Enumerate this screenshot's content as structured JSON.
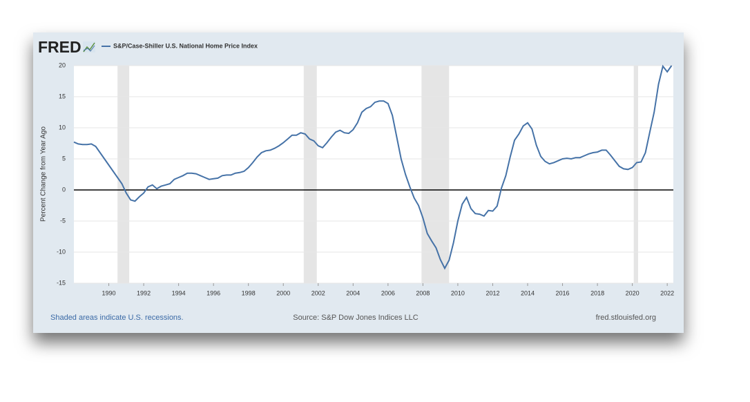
{
  "chart_data": {
    "type": "line",
    "logo": "FRED",
    "ylabel": "Percent Change from Year Ago",
    "note": "Shaded areas indicate U.S. recessions.",
    "source": "Source: S&P Dow Jones Indices LLC",
    "site": "fred.stlouisfed.org",
    "xlim": [
      1988,
      2022.35
    ],
    "ylim": [
      -15,
      20
    ],
    "xticks": [
      1990,
      1992,
      1994,
      1996,
      1998,
      2000,
      2002,
      2004,
      2006,
      2008,
      2010,
      2012,
      2014,
      2016,
      2018,
      2020,
      2022
    ],
    "yticks": [
      -15,
      -10,
      -5,
      0,
      5,
      10,
      15,
      20
    ],
    "grid": true,
    "recessions": [
      [
        1990.5,
        1991.17
      ],
      [
        2001.17,
        2001.92
      ],
      [
        2007.92,
        2009.5
      ],
      [
        2020.08,
        2020.33
      ]
    ],
    "x": [
      1988,
      1988.25,
      1988.5,
      1988.75,
      1989,
      1989.25,
      1989.5,
      1989.75,
      1990,
      1990.25,
      1990.5,
      1990.75,
      1991,
      1991.25,
      1991.5,
      1991.75,
      1992,
      1992.25,
      1992.5,
      1992.75,
      1993,
      1993.25,
      1993.5,
      1993.75,
      1994,
      1994.25,
      1994.5,
      1994.75,
      1995,
      1995.25,
      1995.5,
      1995.75,
      1996,
      1996.25,
      1996.5,
      1996.75,
      1997,
      1997.25,
      1997.5,
      1997.75,
      1998,
      1998.25,
      1998.5,
      1998.75,
      1999,
      1999.25,
      1999.5,
      1999.75,
      2000,
      2000.25,
      2000.5,
      2000.75,
      2001,
      2001.25,
      2001.5,
      2001.75,
      2002,
      2002.25,
      2002.5,
      2002.75,
      2003,
      2003.25,
      2003.5,
      2003.75,
      2004,
      2004.25,
      2004.5,
      2004.75,
      2005,
      2005.25,
      2005.5,
      2005.75,
      2006,
      2006.25,
      2006.5,
      2006.75,
      2007,
      2007.25,
      2007.5,
      2007.75,
      2008,
      2008.25,
      2008.5,
      2008.75,
      2009,
      2009.25,
      2009.5,
      2009.75,
      2010,
      2010.25,
      2010.5,
      2010.75,
      2011,
      2011.25,
      2011.5,
      2011.75,
      2012,
      2012.25,
      2012.5,
      2012.75,
      2013,
      2013.25,
      2013.5,
      2013.75,
      2014,
      2014.25,
      2014.5,
      2014.75,
      2015,
      2015.25,
      2015.5,
      2015.75,
      2016,
      2016.25,
      2016.5,
      2016.75,
      2017,
      2017.25,
      2017.5,
      2017.75,
      2018,
      2018.25,
      2018.5,
      2018.75,
      2019,
      2019.25,
      2019.5,
      2019.75,
      2020,
      2020.25,
      2020.5,
      2020.75,
      2021,
      2021.25,
      2021.5,
      2021.75,
      2022,
      2022.25
    ],
    "series": [
      {
        "name": "S&P/Case-Shiller U.S. National Home Price Index",
        "color": "#4572a7",
        "values": [
          7.7,
          7.4,
          7.3,
          7.3,
          7.4,
          7.0,
          6.0,
          5.0,
          4.0,
          3.0,
          2.0,
          1.0,
          -0.5,
          -1.6,
          -1.8,
          -1.1,
          -0.5,
          0.5,
          0.8,
          0.2,
          0.6,
          0.8,
          1.0,
          1.7,
          2.0,
          2.3,
          2.7,
          2.7,
          2.6,
          2.3,
          2.0,
          1.7,
          1.8,
          1.9,
          2.3,
          2.4,
          2.4,
          2.7,
          2.8,
          3.0,
          3.6,
          4.4,
          5.3,
          6.0,
          6.3,
          6.4,
          6.7,
          7.1,
          7.6,
          8.2,
          8.8,
          8.8,
          9.2,
          9.0,
          8.2,
          7.9,
          7.1,
          6.8,
          7.6,
          8.5,
          9.3,
          9.6,
          9.2,
          9.1,
          9.7,
          10.8,
          12.5,
          13.1,
          13.4,
          14.1,
          14.3,
          14.3,
          13.9,
          12.0,
          8.5,
          5.0,
          2.5,
          0.5,
          -1.3,
          -2.5,
          -4.5,
          -7.0,
          -8.2,
          -9.3,
          -11.2,
          -12.6,
          -11.3,
          -8.5,
          -5.0,
          -2.3,
          -1.2,
          -3.0,
          -3.8,
          -3.9,
          -4.2,
          -3.3,
          -3.4,
          -2.6,
          0.3,
          2.3,
          5.3,
          8.0,
          9.0,
          10.3,
          10.8,
          9.8,
          7.2,
          5.4,
          4.6,
          4.2,
          4.4,
          4.7,
          5.0,
          5.1,
          5.0,
          5.2,
          5.2,
          5.5,
          5.8,
          6.0,
          6.1,
          6.4,
          6.4,
          5.6,
          4.7,
          3.8,
          3.4,
          3.3,
          3.6,
          4.4,
          4.5,
          6.0,
          9.3,
          12.5,
          17.0,
          19.9,
          19.0,
          20.0
        ]
      }
    ]
  }
}
